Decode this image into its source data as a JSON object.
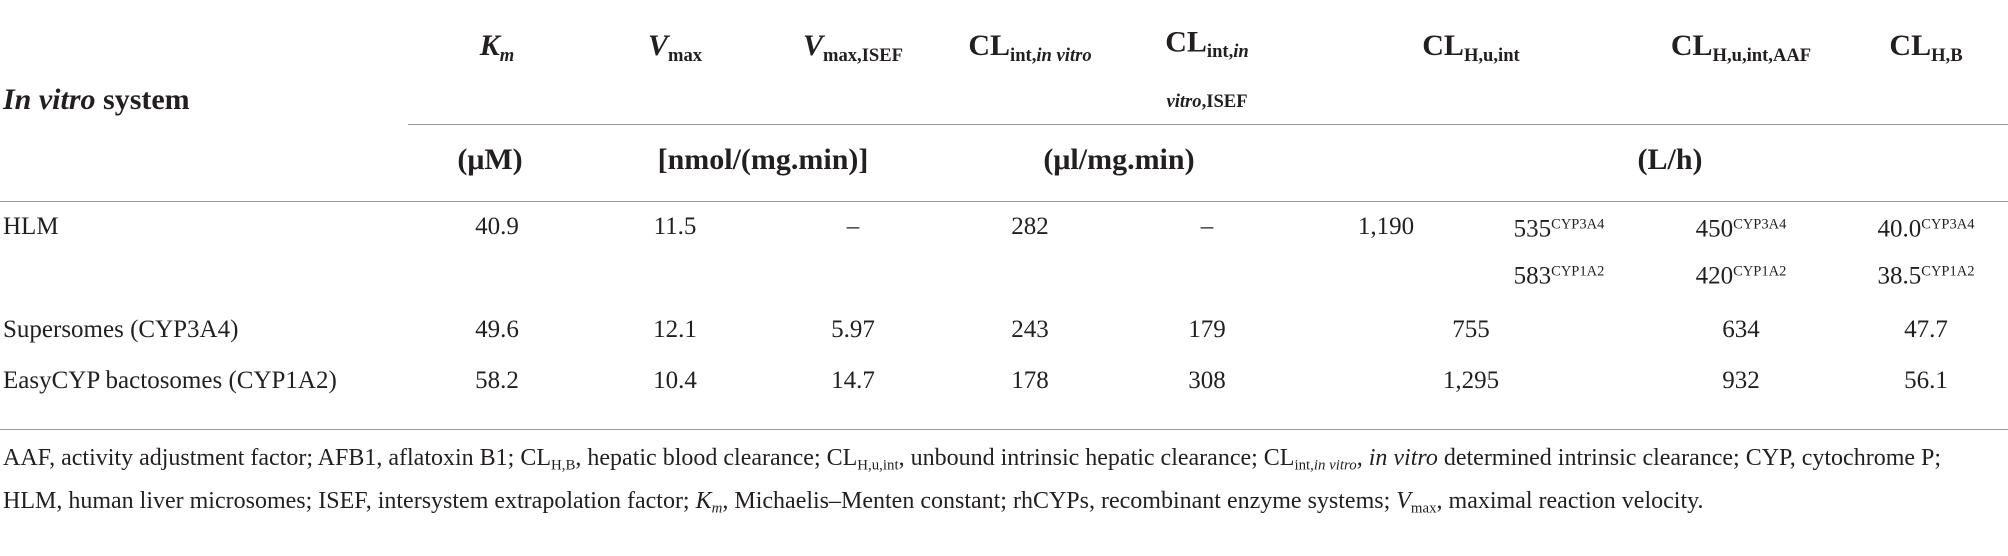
{
  "table": {
    "stub_header": [
      {
        "t": "In vitro",
        "s": "i"
      },
      {
        "t": " system"
      }
    ],
    "columns": [
      [
        {
          "t": "K",
          "s": "i"
        },
        {
          "t": "m",
          "s": "sub-i"
        }
      ],
      [
        {
          "t": "V",
          "s": "i"
        },
        {
          "t": "max",
          "s": "sub"
        }
      ],
      [
        {
          "t": "V",
          "s": "i"
        },
        {
          "t": "max,ISEF",
          "s": "sub"
        }
      ],
      [
        {
          "t": "CL"
        },
        {
          "t": "int,",
          "s": "sub"
        },
        {
          "t": "in vitro",
          "s": "sub-i"
        }
      ],
      [
        {
          "t": "CL"
        },
        {
          "t": "int,",
          "s": "sub"
        },
        {
          "t": "in vitro",
          "s": "sub-i"
        },
        {
          "t": ",ISEF",
          "s": "sub"
        }
      ],
      [
        {
          "t": "CL"
        },
        {
          "t": "H,u,int",
          "s": "sub"
        }
      ],
      [
        {
          "t": "CL"
        },
        {
          "t": "H,u,int,AAF",
          "s": "sub"
        }
      ],
      [
        {
          "t": "CL"
        },
        {
          "t": "H,B",
          "s": "sub"
        }
      ]
    ],
    "units": [
      "(μM)",
      "[nmol/(mg.min)]",
      "(μl/mg.min)",
      "(L/h)"
    ],
    "rows": [
      {
        "label": "HLM",
        "cells": [
          "40.9",
          "11.5",
          "–",
          "282",
          "–",
          {
            "total": "1,190",
            "parts": [
              [
                {
                  "t": "535"
                },
                {
                  "t": "CYP3A4",
                  "s": "sup"
                }
              ],
              [
                {
                  "t": "583"
                },
                {
                  "t": "CYP1A2",
                  "s": "sup"
                }
              ]
            ]
          },
          {
            "parts": [
              [
                {
                  "t": "450"
                },
                {
                  "t": "CYP3A4",
                  "s": "sup"
                }
              ],
              [
                {
                  "t": "420"
                },
                {
                  "t": "CYP1A2",
                  "s": "sup"
                }
              ]
            ]
          },
          {
            "parts": [
              [
                {
                  "t": "40.0"
                },
                {
                  "t": "CYP3A4",
                  "s": "sup"
                }
              ],
              [
                {
                  "t": "38.5"
                },
                {
                  "t": "CYP1A2",
                  "s": "sup"
                }
              ]
            ]
          }
        ]
      },
      {
        "label": "Supersomes (CYP3A4)",
        "cells": [
          "49.6",
          "12.1",
          "5.97",
          "243",
          "179",
          "755",
          "634",
          "47.7"
        ]
      },
      {
        "label": "EasyCYP bactosomes (CYP1A2)",
        "cells": [
          "58.2",
          "10.4",
          "14.7",
          "178",
          "308",
          "1,295",
          "932",
          "56.1"
        ]
      }
    ]
  },
  "footnote": [
    {
      "t": "AAF, activity adjustment factor; AFB1, aflatoxin B1; CL"
    },
    {
      "t": "H,B",
      "s": "sub"
    },
    {
      "t": ", hepatic blood clearance; CL"
    },
    {
      "t": "H,u,int",
      "s": "sub"
    },
    {
      "t": ", unbound intrinsic hepatic clearance; CL"
    },
    {
      "t": "int,",
      "s": "sub"
    },
    {
      "t": "in vitro",
      "s": "sub-i"
    },
    {
      "t": ", "
    },
    {
      "t": "in vitro",
      "s": "i"
    },
    {
      "t": " determined intrinsic clearance; CYP, cytochrome P; HLM, human liver microsomes; ISEF, intersystem extrapolation factor; "
    },
    {
      "t": "K",
      "s": "i"
    },
    {
      "t": "m",
      "s": "sub-i"
    },
    {
      "t": ", Michaelis–Menten constant; rhCYPs, recombinant enzyme systems; "
    },
    {
      "t": "V",
      "s": "i"
    },
    {
      "t": "max",
      "s": "sub"
    },
    {
      "t": ", maximal reaction velocity."
    }
  ]
}
